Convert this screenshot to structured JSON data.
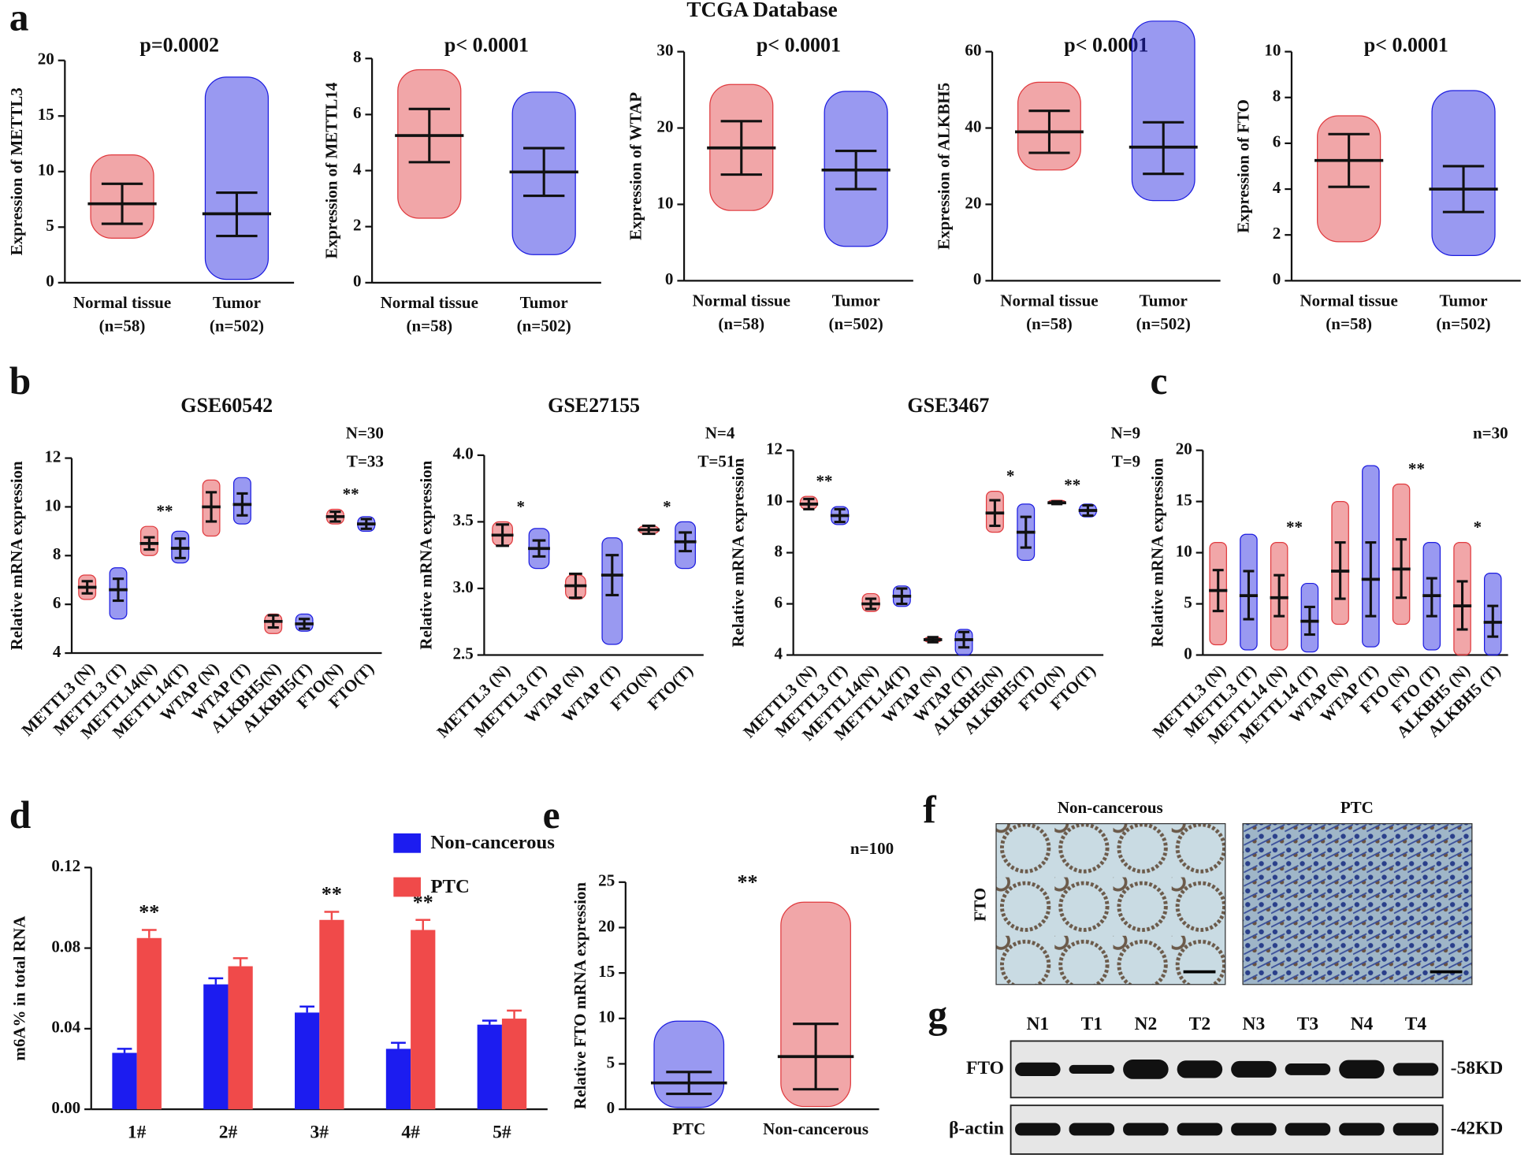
{
  "supertitle": "TCGA Database",
  "panel_labels": [
    "a",
    "b",
    "c",
    "d",
    "e",
    "f",
    "g"
  ],
  "chart_data": [
    {
      "type": "dotplot",
      "title": "p=0.0002",
      "ylabel": "Expression of METTL3",
      "categories": [
        "Normal tissue",
        "Tumor"
      ],
      "category_notes": [
        "(n=58)",
        "(n=502)"
      ],
      "colors": [
        "#e03a3e",
        "#1c1ce0"
      ],
      "mean": [
        7.1,
        6.2
      ],
      "sd_low": [
        5.3,
        4.2
      ],
      "sd_high": [
        8.9,
        8.1
      ],
      "min": [
        4.0,
        0.3
      ],
      "max": [
        11.5,
        18.5
      ],
      "ylim": [
        0,
        20
      ],
      "yticks": [
        0,
        5,
        10,
        15,
        20
      ]
    },
    {
      "type": "dotplot",
      "title": "p< 0.0001",
      "ylabel": "Expression of METTL14",
      "categories": [
        "Normal tissue",
        "Tumor"
      ],
      "category_notes": [
        "(n=58)",
        "(n=502)"
      ],
      "colors": [
        "#e03a3e",
        "#1c1ce0"
      ],
      "mean": [
        5.25,
        3.95
      ],
      "sd_low": [
        4.3,
        3.1
      ],
      "sd_high": [
        6.2,
        4.8
      ],
      "min": [
        2.3,
        1.0
      ],
      "max": [
        7.6,
        6.8
      ],
      "ylim": [
        0,
        8
      ],
      "yticks": [
        0,
        2,
        4,
        6,
        8
      ]
    },
    {
      "type": "dotplot",
      "title": "p< 0.0001",
      "ylabel": "Expression of WTAP",
      "categories": [
        "Normal tissue",
        "Tumor"
      ],
      "category_notes": [
        "(n=58)",
        "(n=502)"
      ],
      "colors": [
        "#e03a3e",
        "#1c1ce0"
      ],
      "mean": [
        17.4,
        14.5
      ],
      "sd_low": [
        13.9,
        12.0
      ],
      "sd_high": [
        20.9,
        17.0
      ],
      "min": [
        9.2,
        4.5
      ],
      "max": [
        25.7,
        24.8
      ],
      "ylim": [
        0,
        30
      ],
      "yticks": [
        0,
        10,
        20,
        30
      ]
    },
    {
      "type": "dotplot",
      "title": "p< 0.0001",
      "ylabel": "Expression of ALKBH5",
      "categories": [
        "Normal tissue",
        "Tumor"
      ],
      "category_notes": [
        "(n=58)",
        "(n=502)"
      ],
      "colors": [
        "#e03a3e",
        "#1c1ce0"
      ],
      "mean": [
        39,
        35
      ],
      "sd_low": [
        33.5,
        28
      ],
      "sd_high": [
        44.5,
        41.5
      ],
      "min": [
        29,
        21
      ],
      "max": [
        52,
        68
      ],
      "ylim": [
        0,
        60
      ],
      "yticks": [
        0,
        20,
        40,
        60
      ]
    },
    {
      "type": "dotplot",
      "title": "p< 0.0001",
      "ylabel": "Expression of FTO",
      "categories": [
        "Normal tissue",
        "Tumor"
      ],
      "category_notes": [
        "(n=58)",
        "(n=502)"
      ],
      "colors": [
        "#e03a3e",
        "#1c1ce0"
      ],
      "mean": [
        5.25,
        4.0
      ],
      "sd_low": [
        4.1,
        3.0
      ],
      "sd_high": [
        6.4,
        5.0
      ],
      "min": [
        1.7,
        1.1
      ],
      "max": [
        7.2,
        8.3
      ],
      "ylim": [
        0,
        10
      ],
      "yticks": [
        0,
        2,
        4,
        6,
        8,
        10
      ]
    },
    {
      "type": "dotplot",
      "title": "GSE60542",
      "ylabel": "Relative mRNA expression",
      "annotations": [
        "N=30",
        "T=33"
      ],
      "categories": [
        "METTL3 (N)",
        "METTL3 (T)",
        "METTL14(N)",
        "METTL14(T)",
        "WTAP (N)",
        "WTAP (T)",
        "ALKBH5(N)",
        "ALKBH5(T)",
        "FTO(N)",
        "FTO(T)"
      ],
      "colors": [
        "#e03a3e",
        "#1c1ce0",
        "#e03a3e",
        "#1c1ce0",
        "#e03a3e",
        "#1c1ce0",
        "#e03a3e",
        "#1c1ce0",
        "#e03a3e",
        "#1c1ce0"
      ],
      "mean": [
        6.7,
        6.6,
        8.5,
        8.3,
        10.0,
        10.1,
        5.3,
        5.2,
        9.6,
        9.3
      ],
      "sd_low": [
        6.45,
        6.15,
        8.25,
        7.9,
        9.4,
        9.65,
        5.05,
        5.0,
        9.4,
        9.1
      ],
      "sd_high": [
        6.95,
        7.05,
        8.75,
        8.7,
        10.6,
        10.55,
        5.55,
        5.4,
        9.8,
        9.5
      ],
      "min": [
        6.2,
        5.4,
        8.0,
        7.7,
        8.8,
        9.3,
        4.8,
        4.9,
        9.3,
        9.0
      ],
      "max": [
        7.2,
        7.5,
        9.2,
        9.0,
        11.1,
        11.2,
        5.6,
        5.6,
        9.9,
        9.6
      ],
      "stars": [
        null,
        "**",
        null,
        null,
        "**"
      ],
      "ylim": [
        4,
        12
      ],
      "yticks": [
        4,
        6,
        8,
        10,
        12
      ]
    },
    {
      "type": "dotplot",
      "title": "GSE27155",
      "ylabel": "Relative mRNA expression",
      "annotations": [
        "N=4",
        "T=51"
      ],
      "categories": [
        "METTL3 (N)",
        "METTL3 (T)",
        "WTAP (N)",
        "WTAP (T)",
        "FTO(N)",
        "FTO(T)"
      ],
      "colors": [
        "#e03a3e",
        "#1c1ce0",
        "#e03a3e",
        "#1c1ce0",
        "#e03a3e",
        "#1c1ce0"
      ],
      "mean": [
        3.4,
        3.3,
        3.02,
        3.1,
        3.44,
        3.35
      ],
      "sd_low": [
        3.32,
        3.24,
        2.93,
        2.95,
        3.41,
        3.28
      ],
      "sd_high": [
        3.48,
        3.36,
        3.11,
        3.25,
        3.47,
        3.42
      ],
      "min": [
        3.32,
        3.15,
        2.92,
        2.58,
        3.41,
        3.15
      ],
      "max": [
        3.5,
        3.45,
        3.1,
        3.38,
        3.47,
        3.5
      ],
      "stars": [
        "*",
        null,
        "*"
      ],
      "ylim": [
        2.5,
        4.0
      ],
      "yticks": [
        2.5,
        {
          "value": 3.0,
          "label": "3.0"
        },
        3.5,
        {
          "value": 4.0,
          "label": "4.0"
        }
      ]
    },
    {
      "type": "dotplot",
      "title": "GSE3467",
      "ylabel": "Relative mRNA expression",
      "annotations": [
        "N=9",
        "T=9"
      ],
      "categories": [
        "METTL3 (N)",
        "METTL3 (T)",
        "METTL14(N)",
        "METTL14(T)",
        "WTAP (N)",
        "WTAP (T)",
        "ALKBH5(N)",
        "ALKBH5(T)",
        "FTO(N)",
        "FTO(T)"
      ],
      "colors": [
        "#e03a3e",
        "#1c1ce0",
        "#e03a3e",
        "#1c1ce0",
        "#e03a3e",
        "#1c1ce0",
        "#e03a3e",
        "#1c1ce0",
        "#e03a3e",
        "#1c1ce0"
      ],
      "mean": [
        9.9,
        9.45,
        6.0,
        6.3,
        4.6,
        4.6,
        9.55,
        8.8,
        9.95,
        9.65
      ],
      "sd_low": [
        9.7,
        9.2,
        5.8,
        6.0,
        4.5,
        4.3,
        9.05,
        8.2,
        9.9,
        9.45
      ],
      "sd_high": [
        10.1,
        9.7,
        6.2,
        6.6,
        4.7,
        4.9,
        10.05,
        9.4,
        10.0,
        9.85
      ],
      "min": [
        9.7,
        9.1,
        5.7,
        5.9,
        4.5,
        4.0,
        8.8,
        7.7,
        9.9,
        9.4
      ],
      "max": [
        10.2,
        9.8,
        6.4,
        6.7,
        4.7,
        5.0,
        10.4,
        9.9,
        10.05,
        9.9
      ],
      "stars": [
        "**",
        null,
        null,
        "*",
        "**"
      ],
      "ylim": [
        4,
        12
      ],
      "yticks": [
        4,
        6,
        8,
        10,
        12
      ]
    },
    {
      "type": "dotplot",
      "ylabel": "Relative mRNA expression",
      "annotations": [
        "n=30"
      ],
      "categories": [
        "METTL3 (N)",
        "METTL3 (T)",
        "METTL14 (N)",
        "METTL14 (T)",
        "WTAP (N)",
        "WTAP (T)",
        "FTO (N)",
        "FTO (T)",
        "ALKBH5 (N)",
        "ALKBH5 (T)"
      ],
      "colors": [
        "#e03a3e",
        "#1c1ce0",
        "#e03a3e",
        "#1c1ce0",
        "#e03a3e",
        "#1c1ce0",
        "#e03a3e",
        "#1c1ce0",
        "#e03a3e",
        "#1c1ce0"
      ],
      "mean": [
        6.3,
        5.8,
        5.6,
        3.3,
        8.2,
        7.4,
        8.4,
        5.8,
        4.8,
        3.2
      ],
      "sd_low": [
        4.3,
        3.5,
        3.8,
        2.0,
        5.5,
        3.8,
        5.6,
        3.8,
        2.5,
        1.8
      ],
      "sd_high": [
        8.3,
        8.2,
        7.8,
        4.7,
        11.0,
        11.0,
        11.3,
        7.5,
        7.2,
        4.8
      ],
      "min": [
        1.0,
        0.5,
        0.5,
        0.3,
        3.0,
        0.8,
        3.0,
        0.5,
        0,
        0
      ],
      "max": [
        11.0,
        11.8,
        11.0,
        7.0,
        15.0,
        18.5,
        16.7,
        11.0,
        11.0,
        8.0
      ],
      "stars": [
        null,
        "**",
        null,
        "**",
        "*"
      ],
      "ylim": [
        0,
        20
      ],
      "yticks": [
        0,
        5,
        10,
        15,
        20
      ]
    },
    {
      "type": "bar",
      "ylabel": "m6A% in total RNA",
      "categories": [
        "1#",
        "2#",
        "3#",
        "4#",
        "5#"
      ],
      "series": [
        {
          "name": "Non-cancerous",
          "color": "#1c1cf0",
          "values": [
            0.028,
            0.062,
            0.048,
            0.03,
            0.042
          ],
          "errors": [
            0.002,
            0.003,
            0.003,
            0.003,
            0.002
          ]
        },
        {
          "name": "PTC",
          "color": "#f04a4a",
          "values": [
            0.085,
            0.071,
            0.094,
            0.089,
            0.045
          ],
          "errors": [
            0.004,
            0.004,
            0.004,
            0.005,
            0.004
          ]
        }
      ],
      "stars": [
        "**",
        null,
        "**",
        "**",
        null
      ],
      "ylim": [
        0,
        0.12
      ],
      "yticks": [
        {
          "value": 0,
          "label": "0.00"
        },
        {
          "value": 0.04,
          "label": "0.04"
        },
        {
          "value": 0.08,
          "label": "0.08"
        },
        {
          "value": 0.12,
          "label": "0.12"
        }
      ]
    },
    {
      "type": "dotplot",
      "ylabel": "Relative FTO mRNA expression",
      "annotations": [
        "n=100"
      ],
      "star": "**",
      "categories": [
        "PTC",
        "Non-cancerous"
      ],
      "colors": [
        "#1c1ce0",
        "#e03a3e"
      ],
      "mean": [
        2.9,
        5.8
      ],
      "sd_low": [
        1.7,
        2.2
      ],
      "sd_high": [
        4.1,
        9.4
      ],
      "min": [
        0.2,
        0.3
      ],
      "max": [
        9.7,
        22.8
      ],
      "ylim": [
        0,
        25
      ],
      "yticks": [
        0,
        5,
        10,
        15,
        20,
        25
      ]
    }
  ],
  "image_panel": {
    "titles": [
      "Non-cancerous",
      "PTC"
    ],
    "row_label": "FTO"
  },
  "blot": {
    "lanes": [
      "N1",
      "T1",
      "N2",
      "T2",
      "N3",
      "T3",
      "N4",
      "T4"
    ],
    "rows": [
      "FTO",
      "β-actin"
    ],
    "sizes": [
      "-58KD",
      "-42KD"
    ]
  }
}
